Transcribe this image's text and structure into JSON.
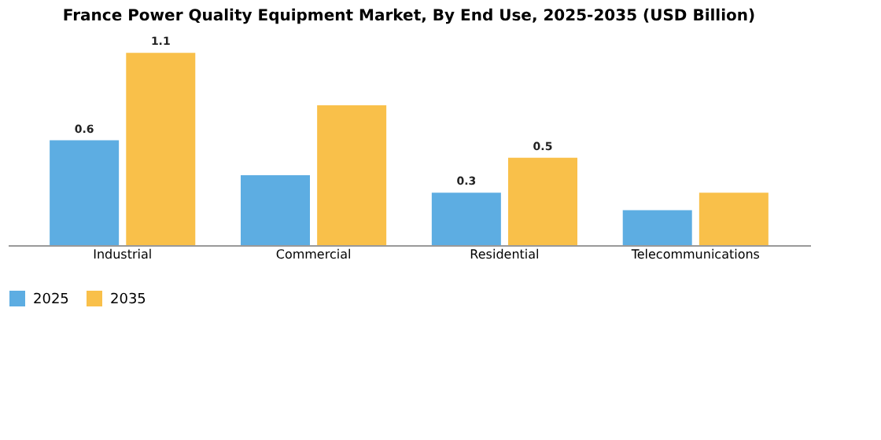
{
  "chart_data": {
    "type": "bar",
    "title": "France Power Quality Equipment Market, By End Use, 2025-2035 (USD Billion)",
    "categories": [
      "Industrial",
      "Commercial",
      "Residential",
      "Telecommunications"
    ],
    "series": [
      {
        "name": "2025",
        "color": "#5dade2",
        "values": [
          0.6,
          0.4,
          0.3,
          0.2
        ],
        "value_labels": [
          "0.6",
          null,
          "0.3",
          null
        ]
      },
      {
        "name": "2035",
        "color": "#f9c04a",
        "values": [
          1.1,
          0.8,
          0.5,
          0.3
        ],
        "value_labels": [
          "1.1",
          null,
          "0.5",
          null
        ]
      }
    ],
    "legend": "bottom",
    "grid": false
  }
}
